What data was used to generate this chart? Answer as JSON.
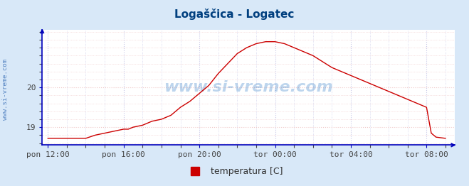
{
  "title": "Logaščica - Logatec",
  "title_color": "#003f7f",
  "title_fontsize": 11,
  "bg_color": "#d8e8f8",
  "plot_bg_color": "#ffffff",
  "line_color": "#cc0000",
  "axis_color": "#0000bb",
  "grid_color_x": "#c8c8e8",
  "grid_color_y": "#f0c8c8",
  "watermark_text": "www.si-vreme.com",
  "watermark_color": "#4488cc",
  "watermark_alpha": 0.35,
  "legend_label": "temperatura [C]",
  "legend_color": "#cc0000",
  "sidebar_text": "www.si-vreme.com",
  "sidebar_color": "#4477bb",
  "tick_labels": [
    "pon 12:00",
    "pon 16:00",
    "pon 20:00",
    "tor 00:00",
    "tor 04:00",
    "tor 08:00"
  ],
  "tick_positions": [
    0,
    4,
    8,
    12,
    16,
    20
  ],
  "ylim": [
    18.55,
    21.45
  ],
  "yticks": [
    19,
    20
  ],
  "xlim_min": -0.3,
  "xlim_max": 21.5,
  "time_hours": [
    0.0,
    0.25,
    0.5,
    0.75,
    1.0,
    1.5,
    2.0,
    2.5,
    3.0,
    3.5,
    4.0,
    4.25,
    4.5,
    5.0,
    5.5,
    6.0,
    6.5,
    7.0,
    7.5,
    8.0,
    8.5,
    9.0,
    9.5,
    10.0,
    10.5,
    11.0,
    11.5,
    12.0,
    12.5,
    13.0,
    13.5,
    14.0,
    14.5,
    15.0,
    15.5,
    16.0,
    16.5,
    17.0,
    17.5,
    18.0,
    18.5,
    19.0,
    19.5,
    20.0,
    20.25,
    20.5,
    21.0
  ],
  "temperatures": [
    18.72,
    18.72,
    18.72,
    18.72,
    18.72,
    18.72,
    18.72,
    18.8,
    18.85,
    18.9,
    18.95,
    18.95,
    19.0,
    19.05,
    19.15,
    19.2,
    19.3,
    19.5,
    19.65,
    19.85,
    20.05,
    20.35,
    20.6,
    20.85,
    21.0,
    21.1,
    21.15,
    21.15,
    21.1,
    21.0,
    20.9,
    20.8,
    20.65,
    20.5,
    20.4,
    20.3,
    20.2,
    20.1,
    20.0,
    19.9,
    19.8,
    19.7,
    19.6,
    19.5,
    18.85,
    18.75,
    18.72
  ]
}
